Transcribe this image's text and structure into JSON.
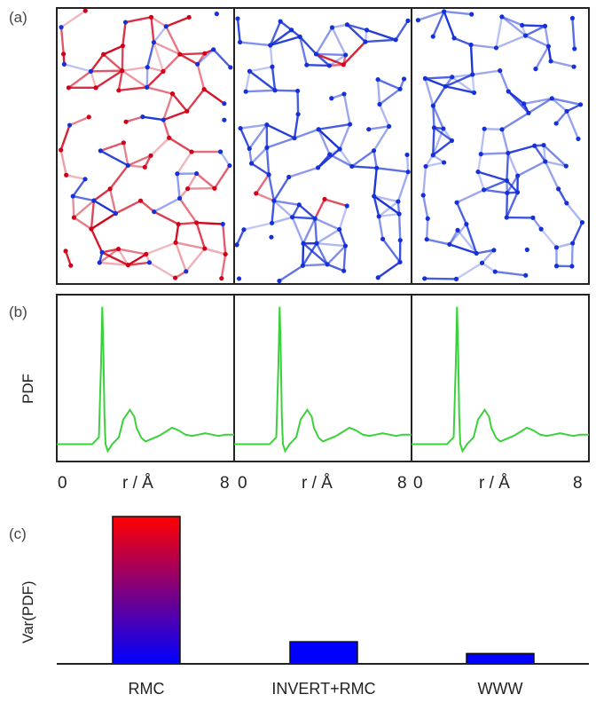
{
  "panel_labels": {
    "a": "(a)",
    "b": "(b)",
    "c": "(c)"
  },
  "chart_data": [
    {
      "type": "line",
      "panel": "(b)",
      "ylabel": "PDF",
      "xlabel": "r / Å",
      "xlim": [
        0,
        8
      ],
      "x_ticks": [
        "0",
        "8"
      ],
      "grid": false,
      "note": "three identical-looking PDF curves, one per model",
      "series_color": "#3bd13b",
      "series": [
        {
          "x": [
            0.0,
            1.6,
            1.9,
            2.0,
            2.05,
            2.1,
            2.15,
            2.2,
            2.3,
            2.5,
            2.8,
            3.0,
            3.3,
            3.5,
            3.6,
            3.8,
            4.0,
            4.3,
            4.6,
            4.9,
            5.2,
            5.5,
            5.8,
            6.1,
            6.4,
            6.7,
            7.0,
            7.3,
            7.6,
            8.0
          ],
          "y": [
            0,
            0,
            0.05,
            0.6,
            1.0,
            0.7,
            0.2,
            0.0,
            -0.05,
            0.0,
            0.05,
            0.18,
            0.25,
            0.2,
            0.12,
            0.05,
            0.02,
            0.04,
            0.06,
            0.09,
            0.12,
            0.1,
            0.07,
            0.06,
            0.07,
            0.08,
            0.07,
            0.06,
            0.07,
            0.07
          ]
        },
        {
          "x": [
            0.0,
            1.6,
            1.9,
            2.0,
            2.05,
            2.1,
            2.15,
            2.2,
            2.3,
            2.5,
            2.8,
            3.0,
            3.3,
            3.5,
            3.6,
            3.8,
            4.0,
            4.3,
            4.6,
            4.9,
            5.2,
            5.5,
            5.8,
            6.1,
            6.4,
            6.7,
            7.0,
            7.3,
            7.6,
            8.0
          ],
          "y": [
            0,
            0,
            0.05,
            0.6,
            1.0,
            0.7,
            0.2,
            0.0,
            -0.05,
            0.0,
            0.05,
            0.18,
            0.25,
            0.2,
            0.12,
            0.05,
            0.02,
            0.04,
            0.06,
            0.09,
            0.12,
            0.1,
            0.07,
            0.06,
            0.07,
            0.08,
            0.07,
            0.06,
            0.07,
            0.07
          ]
        },
        {
          "x": [
            0.0,
            1.6,
            1.9,
            2.0,
            2.05,
            2.1,
            2.15,
            2.2,
            2.3,
            2.5,
            2.8,
            3.0,
            3.3,
            3.5,
            3.6,
            3.8,
            4.0,
            4.3,
            4.6,
            4.9,
            5.2,
            5.5,
            5.8,
            6.1,
            6.4,
            6.7,
            7.0,
            7.3,
            7.6,
            8.0
          ],
          "y": [
            0,
            0,
            0.05,
            0.6,
            1.0,
            0.7,
            0.2,
            0.0,
            -0.05,
            0.0,
            0.05,
            0.18,
            0.25,
            0.2,
            0.12,
            0.05,
            0.02,
            0.04,
            0.06,
            0.09,
            0.12,
            0.1,
            0.07,
            0.06,
            0.07,
            0.08,
            0.07,
            0.06,
            0.07,
            0.07
          ]
        }
      ]
    },
    {
      "type": "bar",
      "panel": "(c)",
      "ylabel": "Var(PDF)",
      "categories": [
        "RMC",
        "INVERT+RMC",
        "WWW"
      ],
      "values": [
        1.0,
        0.15,
        0.07
      ],
      "ylim": [
        0,
        1.05
      ],
      "bar_colors": {
        "top_high": "#ff0000",
        "bottom": "#0000ff"
      }
    }
  ],
  "structure_panels": {
    "colors": {
      "defect": "#d00018",
      "ideal": "#1530d8"
    }
  }
}
